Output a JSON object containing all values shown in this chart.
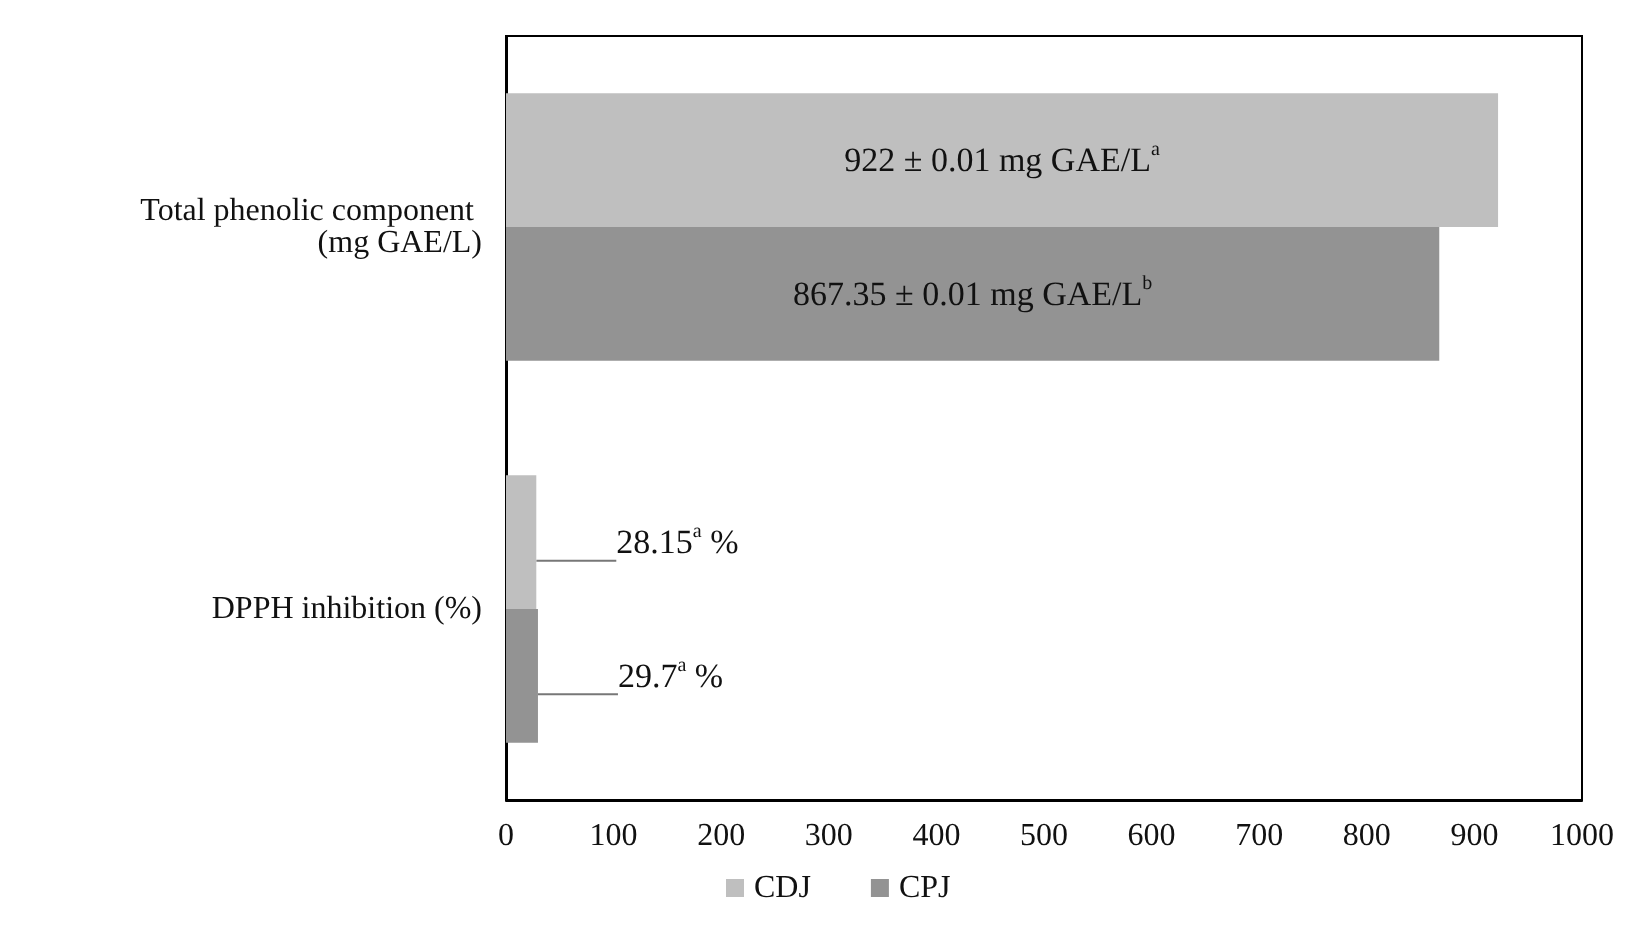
{
  "chart_data": {
    "type": "bar",
    "orientation": "horizontal",
    "categories": [
      "Total phenolic component (mg GAE/L)",
      "DPPH inhibition (%)"
    ],
    "series": [
      {
        "name": "CDJ",
        "color": "#bfbfbf",
        "values": [
          922,
          28.15
        ],
        "value_labels": [
          "922 ± 0.01 mg GAE/L$^{a}$",
          "28.15$^{a}$ %"
        ]
      },
      {
        "name": "CPJ",
        "color": "#939393",
        "values": [
          867.35,
          29.7
        ],
        "value_labels": [
          "867.35 ± 0.01 mg GAE/L$^{b}$",
          "29.7$^{a}$ %"
        ]
      }
    ],
    "xlim": [
      0,
      1000
    ],
    "xticks": [
      0,
      100,
      200,
      300,
      400,
      500,
      600,
      700,
      800,
      900,
      1000
    ],
    "grid": false,
    "legend": "bottom"
  }
}
